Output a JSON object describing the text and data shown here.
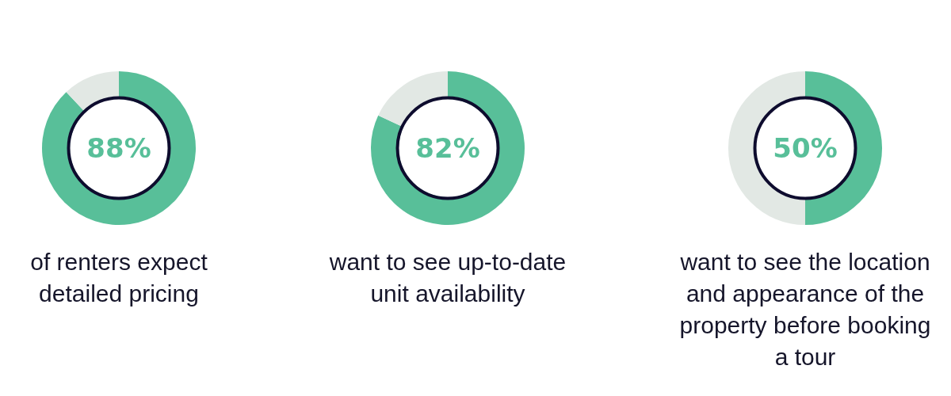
{
  "chart_data": [
    {
      "type": "donut",
      "title": "of renters expect detailed pricing",
      "categories": [
        null,
        null
      ],
      "values": [
        88,
        12
      ],
      "colors": [
        "#58bf99",
        "#e2e8e4"
      ],
      "value_labels": [
        "88%",
        null
      ]
    },
    {
      "type": "donut",
      "title": "want to see up-to-date unit availability",
      "categories": [
        null,
        null
      ],
      "values": [
        82,
        18
      ],
      "colors": [
        "#58bf99",
        "#e2e8e4"
      ],
      "value_labels": [
        "82%",
        null
      ]
    },
    {
      "type": "donut",
      "title": "want to see the location and appearance of the property before booking a tour",
      "categories": [
        null,
        null
      ],
      "values": [
        50,
        50
      ],
      "colors": [
        "#58bf99",
        "#e2e8e4"
      ],
      "value_labels": [
        "50%",
        null
      ]
    }
  ]
}
